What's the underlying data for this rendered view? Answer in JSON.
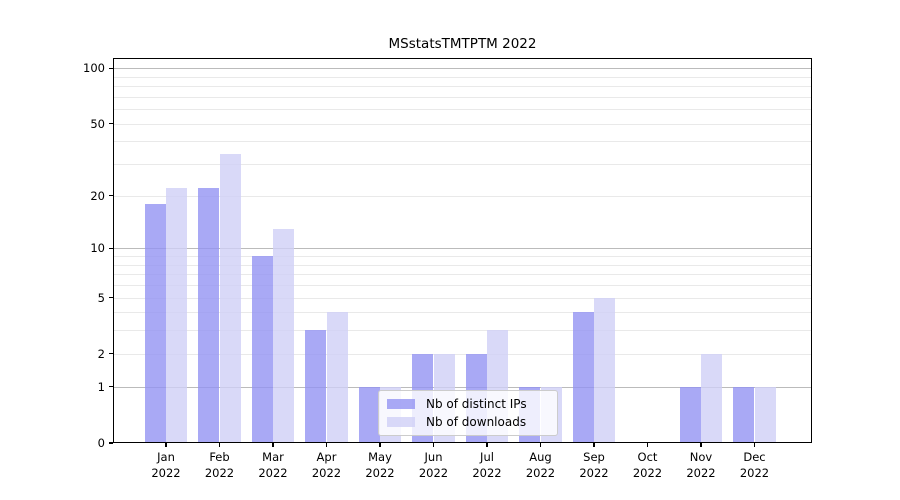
{
  "chart_data": {
    "type": "bar",
    "title": "MSstatsTMTPTM 2022",
    "categories": [
      "Jan",
      "Feb",
      "Mar",
      "Apr",
      "May",
      "Jun",
      "Jul",
      "Aug",
      "Sep",
      "Oct",
      "Nov",
      "Dec"
    ],
    "category_year": "2022",
    "series": [
      {
        "name": "Nb of distinct IPs",
        "color": "rgba(147,147,243,0.8)",
        "values": [
          18,
          22,
          9,
          3,
          1,
          2,
          2,
          1,
          4,
          0,
          1,
          1
        ]
      },
      {
        "name": "Nb of downloads",
        "color": "rgba(208,208,246,0.8)",
        "values": [
          22,
          34,
          13,
          4,
          1,
          2,
          3,
          1,
          5,
          0,
          2,
          1
        ]
      }
    ],
    "xlabel": "",
    "ylabel": "",
    "y_axis": {
      "scale": "log10(1+x)",
      "tick_labels": [
        0,
        1,
        2,
        5,
        10,
        20,
        50,
        100
      ],
      "range": [
        0,
        100
      ]
    },
    "gridlines": {
      "major_values": [
        1,
        10,
        100
      ],
      "minor_values": [
        2,
        3,
        4,
        5,
        6,
        7,
        8,
        9,
        20,
        30,
        40,
        50,
        60,
        70,
        80,
        90
      ]
    },
    "grid": true,
    "legend_position": "lower center",
    "colors": {
      "bar_dark": "#a8a8f5",
      "bar_light": "#d9d9f7",
      "grid_major": "#bbbbbb",
      "grid_minor": "#e9e9e9",
      "frame": "#000000"
    }
  }
}
